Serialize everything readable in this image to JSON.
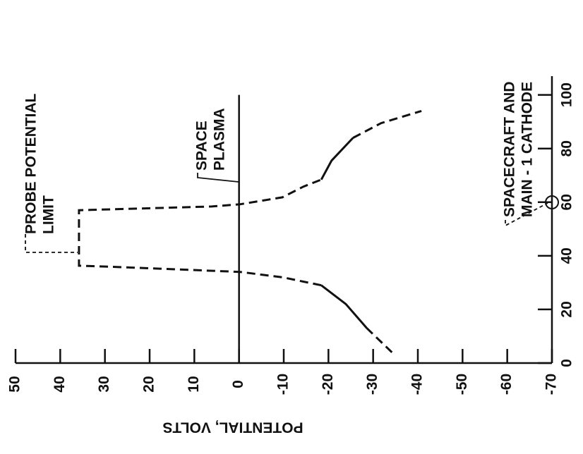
{
  "chart_data": {
    "type": "line",
    "ylabel": "POTENTIAL, VOLTS",
    "ylim": [
      -70,
      50
    ],
    "yticks": [
      50,
      40,
      30,
      20,
      10,
      0,
      -10,
      -20,
      -30,
      -40,
      -50,
      -60,
      -70
    ],
    "xlim": [
      0,
      107
    ],
    "xticks": [
      0,
      20,
      40,
      60,
      80,
      100
    ],
    "series": [
      {
        "style": "dashed",
        "color": "#111111",
        "x": [
          4,
          13,
          null,
          29,
          32,
          34,
          36,
          36.3,
          57,
          58.4,
          59.2,
          61.8,
          65.8,
          68.4,
          null,
          84,
          89.5,
          94
        ],
        "values": [
          -34.2,
          -28.6,
          null,
          -18.4,
          -9.7,
          -0.2,
          29.8,
          35.8,
          35.8,
          6.1,
          -0.2,
          -9.7,
          -14.4,
          -18.4,
          null,
          -25.5,
          -31.8,
          -40.8
        ]
      },
      {
        "style": "solid",
        "color": "#111111",
        "x": [
          13,
          22,
          29,
          null,
          68.4,
          75.5,
          84
        ],
        "values": [
          -28.6,
          -23.9,
          -18.4,
          null,
          -18.4,
          -20.7,
          -25.5
        ]
      }
    ],
    "annotations": [
      {
        "lines": [
          "PROBE POTENTIAL",
          "LIMIT"
        ]
      },
      {
        "lines": [
          "SPACE",
          "PLASMA"
        ]
      },
      {
        "lines": [
          "SPACECRAFT AND",
          "MAIN - 1 CATHODE"
        ]
      }
    ]
  }
}
